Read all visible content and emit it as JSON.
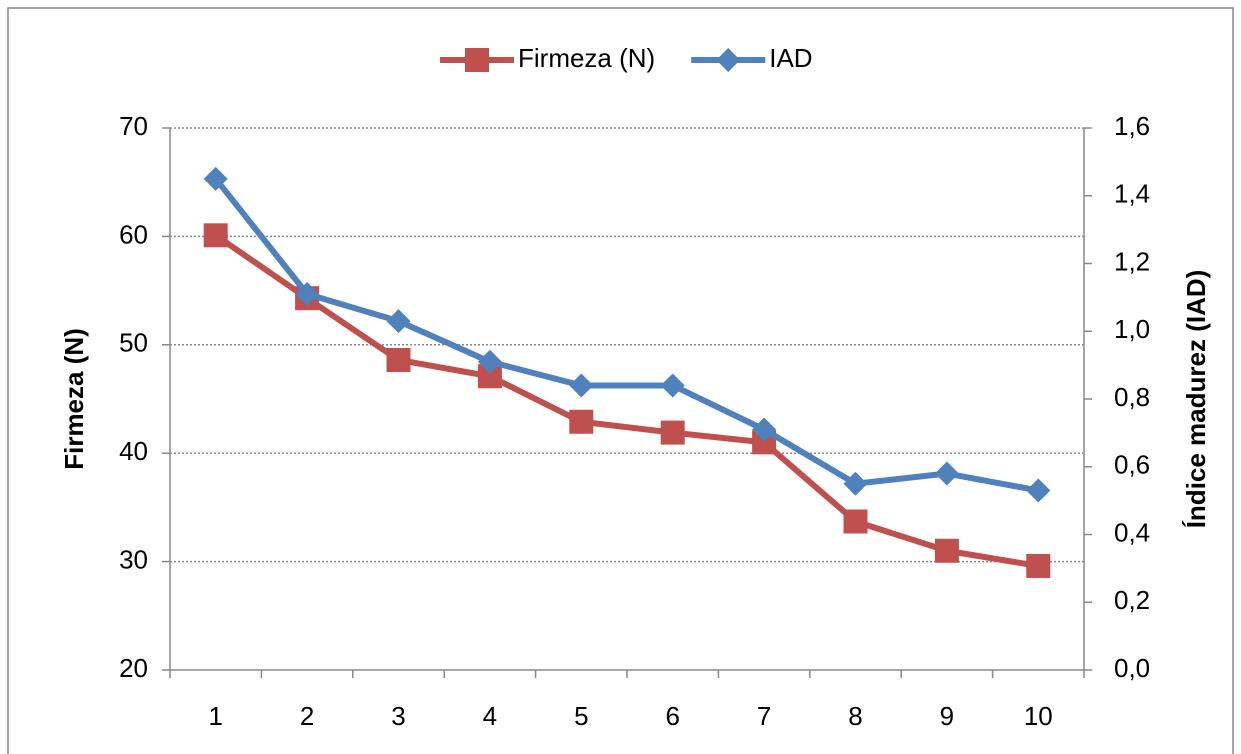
{
  "chart_data": {
    "type": "line",
    "categories": [
      "1",
      "2",
      "3",
      "4",
      "5",
      "6",
      "7",
      "8",
      "9",
      "10"
    ],
    "ylabel": "Firmeza (N)",
    "y2label": "Índice madurez (IAD)",
    "ylim": [
      20,
      70
    ],
    "yticks": [
      20,
      30,
      40,
      50,
      60,
      70
    ],
    "y2lim": [
      0,
      1.6
    ],
    "y2ticks": [
      {
        "value": 0,
        "label": "0,0"
      },
      {
        "value": 0.2,
        "label": "0,2"
      },
      {
        "value": 0.4,
        "label": "0,4"
      },
      {
        "value": 0.6,
        "label": "0,6"
      },
      {
        "value": 0.8,
        "label": "0,8"
      },
      {
        "value": 1.0,
        "label": "1,0"
      },
      {
        "value": 1.2,
        "label": "1,2"
      },
      {
        "value": 1.4,
        "label": "1,4"
      },
      {
        "value": 1.6,
        "label": "1,6"
      }
    ],
    "grid": true,
    "legend": "top",
    "series": [
      {
        "name": "Firmeza (N)",
        "color": "#c0504d",
        "marker": "square",
        "values": [
          60.1,
          54.3,
          48.6,
          47.1,
          42.9,
          41.9,
          41.0,
          33.7,
          31.0,
          29.6
        ]
      },
      {
        "name": "IAD",
        "color": "#4f81bd",
        "marker": "diamond",
        "axis": "y2",
        "values": [
          1.45,
          1.11,
          1.03,
          0.91,
          0.84,
          0.84,
          0.71,
          0.55,
          0.58,
          0.53
        ]
      }
    ]
  }
}
